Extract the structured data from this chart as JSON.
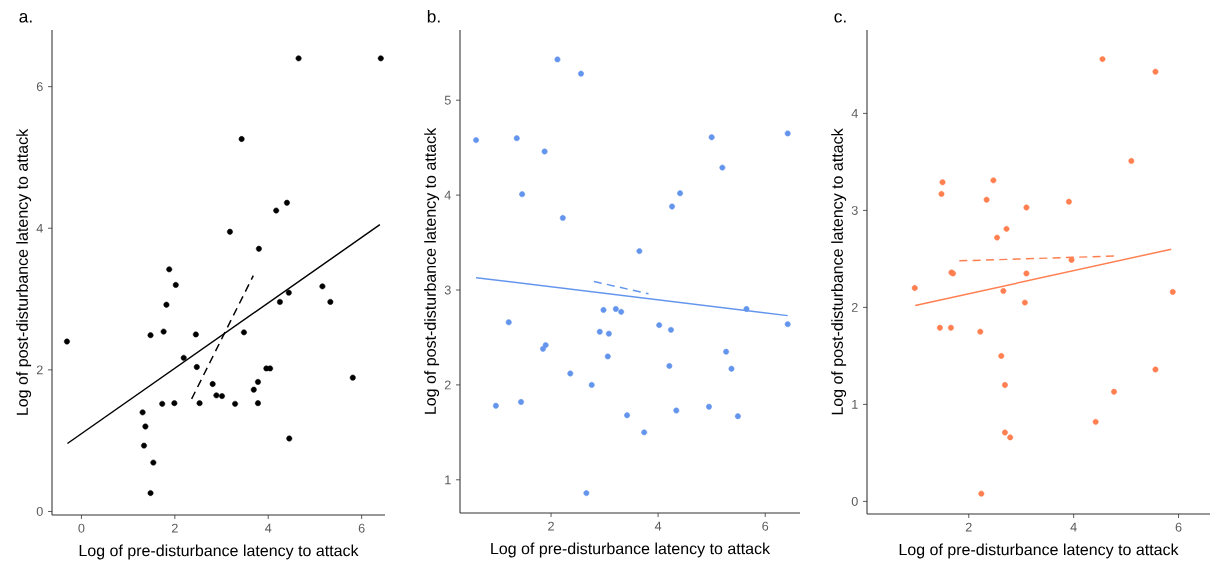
{
  "chart_data": [
    {
      "type": "scatter",
      "title": "a.",
      "xlabel": "Log of pre-disturbance latency to attack",
      "ylabel": "Log of post-disturbance latency to attack",
      "xlim": [
        -0.63,
        6.5
      ],
      "ylim": [
        -0.05,
        6.8
      ],
      "xticks": [
        0,
        2,
        4,
        6
      ],
      "yticks": [
        0,
        2,
        4,
        6
      ],
      "series": [
        {
          "marker": "circle",
          "color": "#000000",
          "x": [
            4.65,
            6.41,
            3.43,
            4.4,
            4.17,
            3.18,
            3.8,
            1.88,
            2.02,
            1.82,
            5.16,
            5.33,
            4.44,
            4.25,
            -0.31,
            1.48,
            1.76,
            2.45,
            3.48,
            2.19,
            2.47,
            3.96,
            4.04,
            5.81,
            2.81,
            3.78,
            3.69,
            2.89,
            3.01,
            1.73,
            1.99,
            2.53,
            3.29,
            3.78,
            1.31,
            1.37,
            1.34,
            1.54,
            1.48,
            4.45
          ],
          "values": [
            6.4,
            6.4,
            5.26,
            4.36,
            4.25,
            3.95,
            3.71,
            3.42,
            3.2,
            2.92,
            3.18,
            2.96,
            3.09,
            2.96,
            2.4,
            2.49,
            2.54,
            2.5,
            2.53,
            2.17,
            2.04,
            2.02,
            2.02,
            1.89,
            1.8,
            1.83,
            1.72,
            1.64,
            1.63,
            1.52,
            1.53,
            1.53,
            1.52,
            1.53,
            1.4,
            1.2,
            0.93,
            0.69,
            0.26,
            1.03
          ]
        },
        {
          "type": "line",
          "line_style": "solid",
          "color": "#000000",
          "x": [
            -0.3,
            6.39
          ],
          "values": [
            0.96,
            4.05
          ]
        },
        {
          "type": "line",
          "line_style": "dashed",
          "color": "#000000",
          "x": [
            2.36,
            3.68
          ],
          "values": [
            1.59,
            3.33
          ]
        }
      ]
    },
    {
      "type": "scatter",
      "title": "b.",
      "xlabel": "Log of pre-disturbance latency to attack",
      "ylabel": "Log of post-disturbance latency to attack",
      "xlim": [
        0.3,
        6.65
      ],
      "ylim": [
        0.65,
        5.74
      ],
      "xticks": [
        2,
        4,
        6
      ],
      "yticks": [
        1,
        2,
        3,
        4,
        5
      ],
      "series": [
        {
          "marker": "circle",
          "color": "#6495ed",
          "x": [
            2.12,
            2.56,
            0.6,
            1.36,
            1.88,
            5.0,
            5.2,
            1.46,
            4.41,
            4.26,
            2.22,
            3.65,
            5.65,
            2.98,
            3.21,
            3.31,
            1.21,
            4.02,
            4.24,
            2.91,
            3.08,
            1.9,
            1.85,
            3.06,
            5.27,
            4.21,
            5.37,
            2.36,
            2.76,
            0.97,
            1.44,
            3.42,
            4.34,
            4.95,
            5.49,
            3.74,
            2.66,
            6.42,
            6.42
          ],
          "values": [
            5.43,
            5.28,
            4.58,
            4.6,
            4.46,
            4.61,
            4.29,
            4.01,
            4.02,
            3.88,
            3.76,
            3.41,
            2.8,
            2.79,
            2.8,
            2.77,
            2.66,
            2.63,
            2.58,
            2.56,
            2.54,
            2.42,
            2.38,
            2.3,
            2.35,
            2.2,
            2.17,
            2.12,
            2.0,
            1.78,
            1.82,
            1.68,
            1.73,
            1.77,
            1.67,
            1.5,
            0.86,
            2.64,
            4.65
          ]
        },
        {
          "type": "line",
          "line_style": "solid",
          "color": "#6495ed",
          "x": [
            0.6,
            6.42
          ],
          "values": [
            3.13,
            2.73
          ]
        },
        {
          "type": "line",
          "line_style": "dashed",
          "color": "#6495ed",
          "x": [
            2.8,
            3.82
          ],
          "values": [
            3.09,
            2.96
          ]
        }
      ]
    },
    {
      "type": "scatter",
      "title": "c.",
      "xlabel": "Log of pre-disturbance latency to attack",
      "ylabel": "Log of post-disturbance latency to attack",
      "xlim": [
        0.06,
        6.6
      ],
      "ylim": [
        -0.13,
        4.86
      ],
      "xticks": [
        2,
        4,
        6
      ],
      "yticks": [
        0,
        1,
        2,
        3,
        4
      ],
      "series": [
        {
          "marker": "circle",
          "color": "#ff7f50",
          "x": [
            4.55,
            5.56,
            5.1,
            1.5,
            1.48,
            2.47,
            2.34,
            3.1,
            3.91,
            2.72,
            2.54,
            3.96,
            1.67,
            1.7,
            3.1,
            0.97,
            2.66,
            5.89,
            3.07,
            1.45,
            1.66,
            2.22,
            2.62,
            2.69,
            5.56,
            4.77,
            4.42,
            2.69,
            2.79,
            2.24
          ],
          "values": [
            4.56,
            4.43,
            3.51,
            3.29,
            3.17,
            3.31,
            3.11,
            3.03,
            3.09,
            2.81,
            2.72,
            2.49,
            2.36,
            2.35,
            2.35,
            2.2,
            2.17,
            2.16,
            2.05,
            1.79,
            1.79,
            1.75,
            1.5,
            1.2,
            1.36,
            1.13,
            0.82,
            0.71,
            0.66,
            0.08
          ]
        },
        {
          "type": "line",
          "line_style": "solid",
          "color": "#ff7f50",
          "x": [
            0.98,
            5.86
          ],
          "values": [
            2.02,
            2.6
          ]
        },
        {
          "type": "line",
          "line_style": "dashed",
          "color": "#ff7f50",
          "x": [
            1.82,
            4.81
          ],
          "values": [
            2.48,
            2.53
          ]
        }
      ]
    }
  ]
}
